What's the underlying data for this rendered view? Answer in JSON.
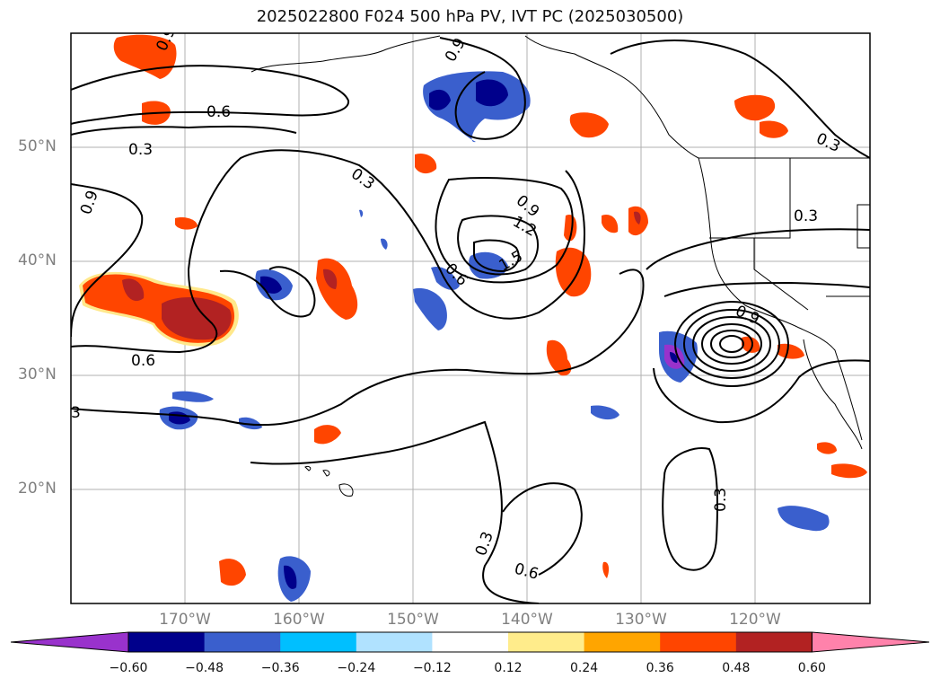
{
  "title": "2025022800 F024 500 hPa PV, IVT PC (2025030500)",
  "map": {
    "region": "North Pacific",
    "lat_labels": [
      "50°N",
      "40°N",
      "30°N",
      "20°N"
    ],
    "lon_labels": [
      "170°W",
      "160°W",
      "150°W",
      "140°W",
      "130°W",
      "120°W"
    ],
    "contour_labels": [
      "0.9",
      "0.6",
      "0.3",
      "0.3",
      "0.9",
      "1.2",
      "1.5",
      "0.6",
      "0.6",
      "0.3",
      "0.3",
      "0.3",
      "0.6",
      "0.3",
      "0.9",
      "0.3",
      "0.9",
      "3"
    ]
  },
  "colorbar": {
    "ticks": [
      "−0.60",
      "−0.48",
      "−0.36",
      "−0.24",
      "−0.12",
      "0.12",
      "0.24",
      "0.36",
      "0.48",
      "0.60"
    ],
    "colors": [
      "#9932cc",
      "#00008b",
      "#3a5fcd",
      "#00bfff",
      "#b0e2ff",
      "#ffffff",
      "#ffec8b",
      "#ffa500",
      "#ff4500",
      "#b22222",
      "#ff82ab"
    ]
  }
}
